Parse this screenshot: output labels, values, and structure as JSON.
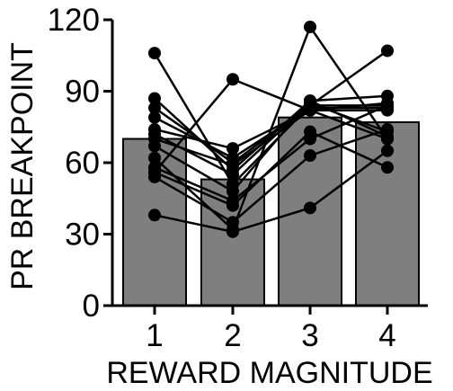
{
  "chart_data": {
    "type": "bar",
    "title": "",
    "xlabel": "REWARD MAGNITUDE",
    "ylabel": "PR BREAKPOINT",
    "categories": [
      "1",
      "2",
      "3",
      "4"
    ],
    "values": [
      70,
      53,
      79,
      77
    ],
    "ylim": [
      0,
      120
    ],
    "yticks": [
      0,
      30,
      60,
      90,
      120
    ],
    "grid": false,
    "legend": "none",
    "bar_color": "#7f7f7f",
    "individual_series": [
      [
        106,
        51,
        84,
        107
      ],
      [
        87,
        57,
        86,
        88
      ],
      [
        83,
        60,
        84,
        84
      ],
      [
        79,
        62,
        83,
        83
      ],
      [
        74,
        66,
        82,
        85
      ],
      [
        72,
        55,
        85,
        73
      ],
      [
        70,
        59,
        82,
        70
      ],
      [
        67,
        48,
        86,
        71
      ],
      [
        58,
        44,
        70,
        84
      ],
      [
        56,
        42,
        73,
        58
      ],
      [
        54,
        35,
        63,
        74
      ],
      [
        38,
        31,
        41,
        65
      ],
      [
        56,
        95,
        82,
        82
      ],
      [
        62,
        32,
        117,
        70
      ]
    ]
  }
}
